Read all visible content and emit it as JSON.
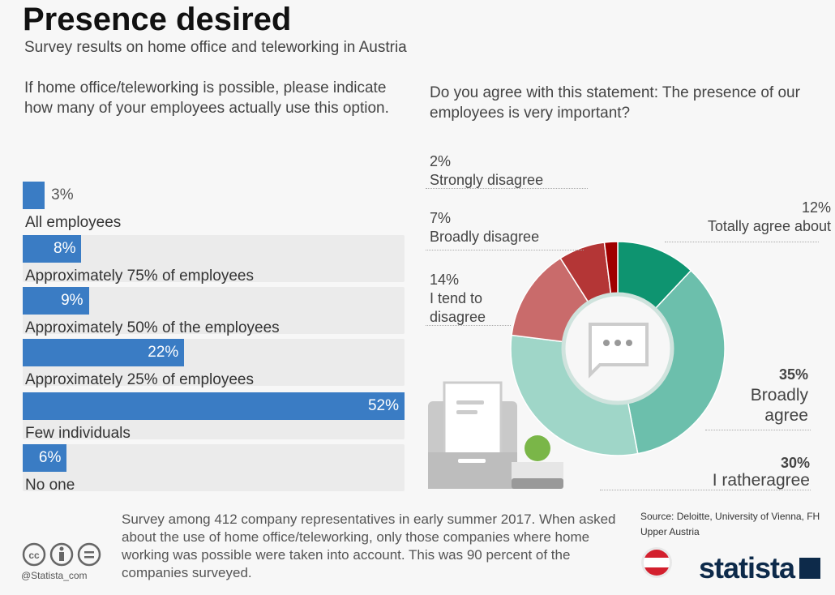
{
  "header": {
    "title": "Presence desired",
    "subtitle": "Survey results on home office and teleworking in Austria"
  },
  "colors": {
    "bar": "#3a7cc4",
    "donut": [
      "#0e9470",
      "#6cbfac",
      "#9fd6c8",
      "#c96b6b",
      "#b43636",
      "#a00000"
    ]
  },
  "chart_data": [
    {
      "type": "bar",
      "orientation": "horizontal",
      "title": "If home office/teleworking is possible, please indicate how many of your employees actually use this option.",
      "categories": [
        "All employees",
        "Approximately 75% of employees",
        "Approximately 50% of the employees",
        "Approximately 25% of employees",
        "Few individuals",
        "No one"
      ],
      "values": [
        3,
        8,
        9,
        22,
        52,
        6
      ],
      "value_labels": [
        "3%",
        "8%",
        "9%",
        "22%",
        "52%",
        "6%"
      ]
    },
    {
      "type": "pie",
      "variant": "donut",
      "title": "Do you agree with this statement: The presence of our employees is very important?",
      "categories": [
        "Totally agree about",
        "Broadly agree",
        "I ratheragree",
        "I tend to disagree",
        "Broadly disagree",
        "Strongly disagree"
      ],
      "values": [
        12,
        35,
        30,
        14,
        7,
        2
      ],
      "value_labels": [
        "12%",
        "35%",
        "30%",
        "14%",
        "7%",
        "2%"
      ]
    }
  ],
  "footer": {
    "note": "Survey among 412 company representatives in early summer 2017. When asked about the use of home office/teleworking, only those companies where home working was possible were taken into account. This was 90 percent of the companies surveyed.",
    "source": "Source: Deloitte, University of Vienna, FH Upper Austria",
    "handle": "@Statista_com",
    "logo": "statista"
  }
}
